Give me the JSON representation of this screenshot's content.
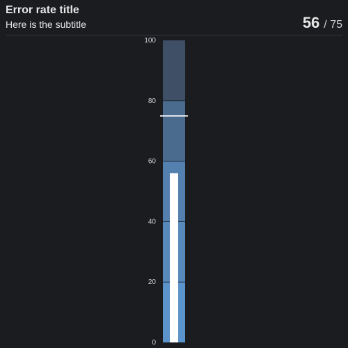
{
  "header": {
    "title": "Error rate title",
    "subtitle": "Here is the subtitle",
    "value": "56",
    "separator": "/",
    "target": "75"
  },
  "chart_data": {
    "type": "bullet",
    "orientation": "vertical",
    "value": 56,
    "target": 75,
    "ylim": [
      0,
      100
    ],
    "ticks": [
      0,
      20,
      40,
      60,
      80,
      100
    ],
    "ranges": [
      {
        "from": 0,
        "to": 20,
        "color": "#5b94ca"
      },
      {
        "from": 20,
        "to": 40,
        "color": "#5789bb"
      },
      {
        "from": 40,
        "to": 60,
        "color": "#5380ae"
      },
      {
        "from": 60,
        "to": 80,
        "color": "#4a6a8e"
      },
      {
        "from": 80,
        "to": 100,
        "color": "#3e4f66"
      }
    ],
    "bar_color": "#ffffff",
    "target_color": "#ffffff"
  }
}
